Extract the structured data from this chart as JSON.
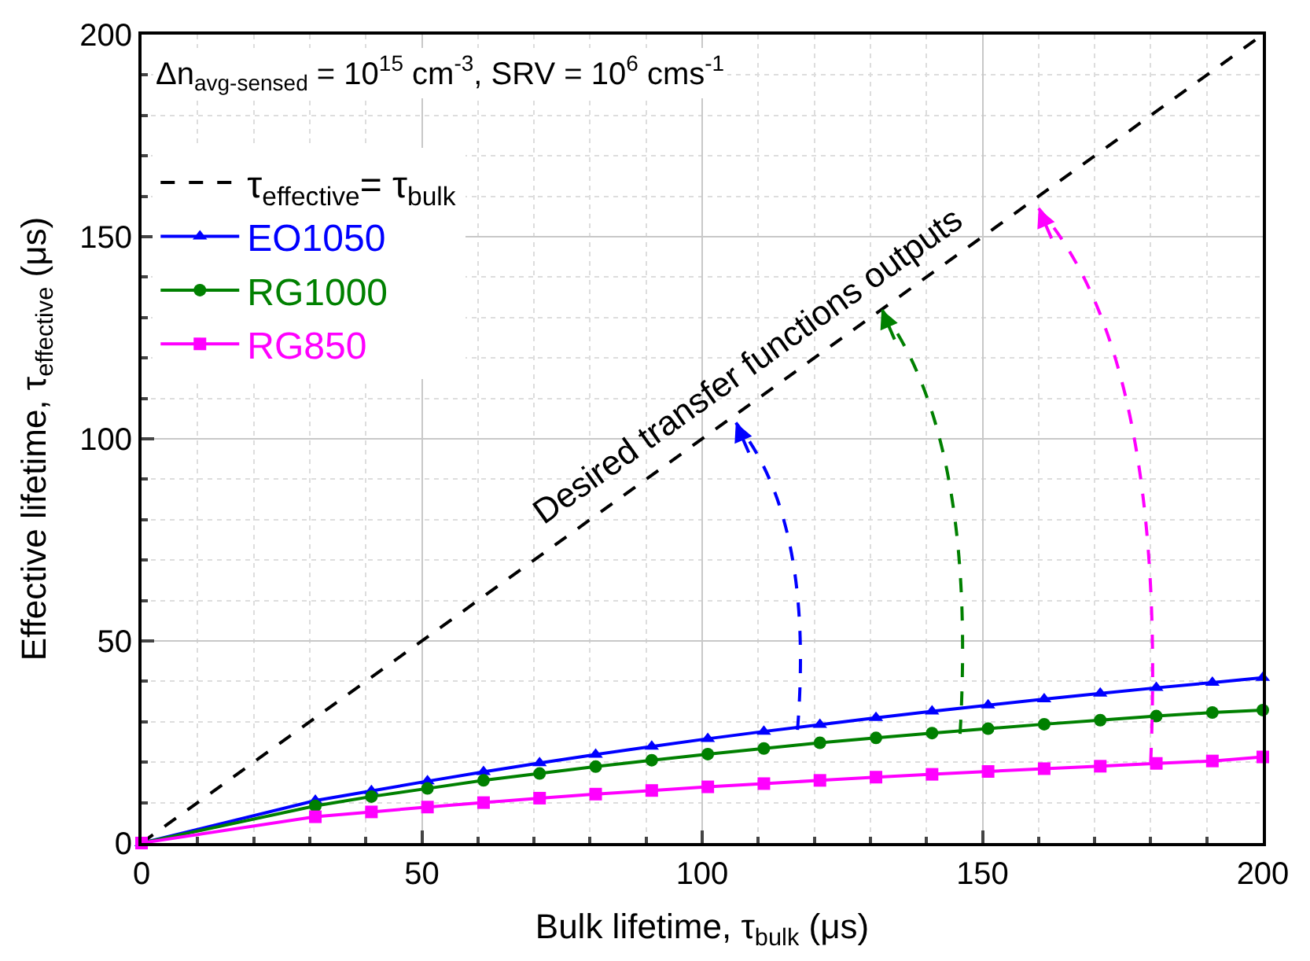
{
  "chart_data": {
    "type": "line",
    "xlabel": "Bulk lifetime, τ$_{bulk}$ (μs)",
    "ylabel": "Effective lifetime, τ$_{effective}$ (μs)",
    "x": [
      0,
      31,
      41,
      51,
      61,
      71,
      81,
      91,
      101,
      111,
      121,
      131,
      141,
      151,
      161,
      171,
      181,
      191,
      200
    ],
    "series": [
      {
        "name": "τ$_{effective}$= τ$_{bulk}$",
        "color": "#000000",
        "x": [
          0,
          200
        ],
        "values": [
          0,
          200
        ],
        "line_style": "dashed",
        "marker": "none"
      },
      {
        "name": "EO1050",
        "color": "#0000ff",
        "marker": "triangle",
        "values": [
          0,
          10.5,
          12.9,
          15.3,
          17.6,
          19.8,
          21.9,
          23.9,
          25.8,
          27.6,
          29.3,
          31.0,
          32.6,
          34.1,
          35.6,
          37.0,
          38.4,
          39.7,
          40.9
        ]
      },
      {
        "name": "RG1000",
        "color": "#008000",
        "marker": "circle",
        "values": [
          0,
          9.2,
          11.5,
          13.5,
          15.5,
          17.2,
          18.9,
          20.5,
          22.0,
          23.4,
          24.8,
          26.0,
          27.2,
          28.3,
          29.4,
          30.4,
          31.4,
          32.3,
          32.9
        ]
      },
      {
        "name": "RG850",
        "color": "#ff00ff",
        "marker": "square",
        "values": [
          0,
          6.5,
          7.7,
          8.9,
          10.0,
          11.1,
          12.1,
          13.0,
          13.9,
          14.7,
          15.5,
          16.3,
          17.0,
          17.7,
          18.4,
          19.0,
          19.7,
          20.3,
          21.3
        ]
      }
    ],
    "annotations": [
      "Δn$_{avg-sensed}$ = 10$^{15}$ cm$^{-3}$, SRV = 10$^{6}$ cms$^{-1}$",
      "Desired transfer functions outputs"
    ],
    "xlim": [
      0,
      200
    ],
    "ylim": [
      0,
      200
    ],
    "xticks": [
      0,
      50,
      100,
      150,
      200
    ],
    "yticks": [
      0,
      50,
      100,
      150,
      200
    ],
    "grid": true,
    "legend": "top left",
    "line_style": "solid"
  }
}
